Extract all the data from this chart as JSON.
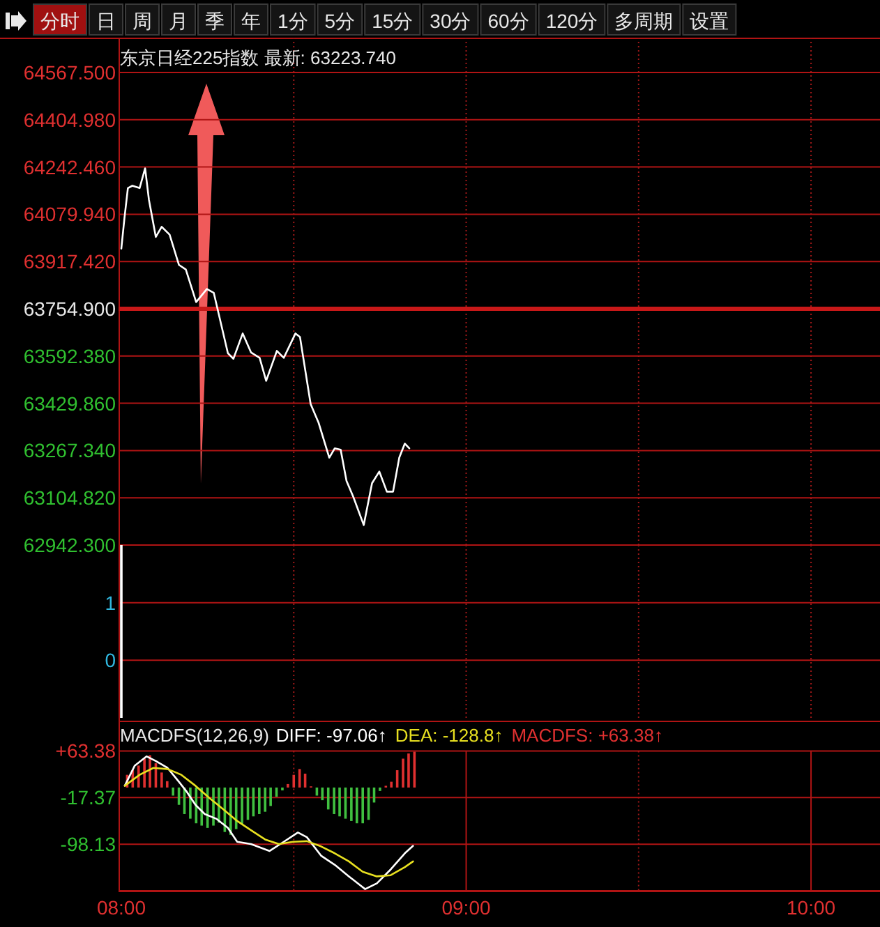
{
  "chart_data": [
    {
      "type": "line",
      "title": "东京日经225指数 最新: 63223.740",
      "annotations": [
        "分时",
        "日",
        "周",
        "月",
        "季",
        "年",
        "1分",
        "5分",
        "15分",
        "30分",
        "60分",
        "120分",
        "多周期",
        "设置"
      ],
      "x": [
        8.0,
        8.009,
        8.019,
        8.032,
        8.053,
        8.069,
        8.08,
        8.1,
        8.117,
        8.14,
        8.167,
        8.187,
        8.217,
        8.248,
        8.268,
        8.309,
        8.325,
        8.352,
        8.376,
        8.401,
        8.42,
        8.451,
        8.471,
        8.505,
        8.518,
        8.549,
        8.572,
        8.603,
        8.619,
        8.636,
        8.653,
        8.673,
        8.703,
        8.727,
        8.748,
        8.77,
        8.788,
        8.806,
        8.822,
        8.835
      ],
      "values": [
        63962,
        64066,
        64170,
        64178,
        64170,
        64238,
        64130,
        64002,
        64037,
        64010,
        63906,
        63890,
        63778,
        63823,
        63810,
        63602,
        63583,
        63670,
        63605,
        63586,
        63507,
        63610,
        63586,
        63670,
        63658,
        63427,
        63363,
        63243,
        63275,
        63270,
        63163,
        63107,
        63011,
        63155,
        63195,
        63126,
        63126,
        63243,
        63291,
        63275
      ],
      "color": "#ffffff",
      "xlim": [
        8,
        10.2
      ],
      "xticks": [
        {
          "value": 8,
          "label": null
        },
        {
          "value": 8.5,
          "label": null
        },
        {
          "value": 9,
          "label": null
        },
        {
          "value": 9.5,
          "label": null
        },
        {
          "value": 10,
          "label": null
        }
      ],
      "ylim": [
        62942.3,
        64567.5
      ],
      "yticks": [
        {
          "value": 64567.5,
          "label": "64567.500"
        },
        {
          "value": 64404.98,
          "label": "64404.980"
        },
        {
          "value": 64242.46,
          "label": "64242.460"
        },
        {
          "value": 64079.94,
          "label": "64079.940"
        },
        {
          "value": 63917.42,
          "label": "63917.420"
        },
        {
          "value": 63754.9,
          "label": "63754.900"
        },
        {
          "value": 63592.38,
          "label": "63592.380"
        },
        {
          "value": 63429.86,
          "label": "63429.860"
        },
        {
          "value": 63267.34,
          "label": "63267.340"
        },
        {
          "value": 63104.82,
          "label": "63104.820"
        },
        {
          "value": 62942.3,
          "label": "62942.300"
        }
      ],
      "ref_lines": [
        {
          "axis": "y",
          "value": 63754.9,
          "color": "#c81818"
        }
      ],
      "grid": true,
      "tick_labels": "y"
    },
    {
      "type": "bar",
      "x": [
        8.0
      ],
      "base": [
        -1
      ],
      "values": [
        3
      ],
      "color": "#ffffff",
      "xlim": [
        8,
        10.2
      ],
      "xticks": [
        {
          "value": 8,
          "label": null
        },
        {
          "value": 8.5,
          "label": null
        },
        {
          "value": 9,
          "label": null
        },
        {
          "value": 9.5,
          "label": null
        },
        {
          "value": 10,
          "label": null
        }
      ],
      "ylim": [
        -1,
        2
      ],
      "yticks": [
        0,
        1
      ],
      "grid": true,
      "tick_labels": "y"
    },
    {
      "type": "bar",
      "title": "MACDFS(12,26,9)",
      "legend": "top left",
      "xlim": [
        8,
        10.2
      ],
      "xticks": [
        {
          "value": 8,
          "label": "08:00"
        },
        {
          "value": 8.5,
          "label": null
        },
        {
          "value": 9,
          "label": "09:00"
        },
        {
          "value": 9.5,
          "label": null
        },
        {
          "value": 10,
          "label": "10:00"
        }
      ],
      "ylim": [
        -178.88,
        63.38
      ],
      "yticks": [
        {
          "value": 63.38,
          "label": "+63.38"
        },
        {
          "value": -17.37,
          "label": "-17.37"
        },
        {
          "value": -98.13,
          "label": "-98.13"
        },
        {
          "value": -178.88,
          "label": null
        }
      ],
      "grid": true,
      "series": [
        {
          "name": "MACDFS: +63.38↑",
          "color": "#e03030",
          "x": [
            8.017,
            8.033,
            8.05,
            8.067,
            8.083,
            8.1,
            8.117,
            8.133,
            8.15,
            8.167,
            8.183,
            8.2,
            8.217,
            8.233,
            8.25,
            8.267,
            8.283,
            8.3,
            8.317,
            8.333,
            8.35,
            8.367,
            8.383,
            8.4,
            8.417,
            8.433,
            8.45,
            8.467,
            8.483,
            8.5,
            8.517,
            8.533,
            8.55,
            8.567,
            8.583,
            8.6,
            8.617,
            8.633,
            8.65,
            8.667,
            8.683,
            8.7,
            8.717,
            8.733,
            8.75,
            8.767,
            8.783,
            8.8,
            8.817,
            8.833,
            8.85
          ],
          "values": [
            22,
            30,
            38,
            50,
            56,
            42,
            26,
            11,
            -14,
            -30,
            -46,
            -54,
            -62,
            -66,
            -70,
            -66,
            -61,
            -77,
            -82,
            -72,
            -64,
            -56,
            -50,
            -46,
            -42,
            -32,
            -16,
            -5,
            6,
            22,
            32,
            24,
            2,
            -14,
            -22,
            -38,
            -46,
            -50,
            -54,
            -58,
            -62,
            -62,
            -56,
            -26,
            -6,
            3,
            10,
            30,
            50,
            59,
            62
          ],
          "colors": [
            "#e03030",
            "#e03030",
            "#e03030",
            "#e03030",
            "#e03030",
            "#e03030",
            "#e03030",
            "#e03030",
            "#40c040",
            "#40c040",
            "#40c040",
            "#40c040",
            "#40c040",
            "#40c040",
            "#40c040",
            "#40c040",
            "#40c040",
            "#40c040",
            "#40c040",
            "#40c040",
            "#40c040",
            "#40c040",
            "#40c040",
            "#40c040",
            "#40c040",
            "#40c040",
            "#40c040",
            "#40c040",
            "#e03030",
            "#e03030",
            "#e03030",
            "#e03030",
            "#e03030",
            "#40c040",
            "#40c040",
            "#40c040",
            "#40c040",
            "#40c040",
            "#40c040",
            "#40c040",
            "#40c040",
            "#40c040",
            "#40c040",
            "#40c040",
            "#40c040",
            "#e03030",
            "#e03030",
            "#e03030",
            "#e03030",
            "#e03030",
            "#e03030"
          ]
        },
        {
          "name": "DIFF: -97.06↑",
          "type": "line",
          "color": "#ffffff",
          "x": [
            8.01,
            8.039,
            8.073,
            8.1,
            8.134,
            8.167,
            8.188,
            8.215,
            8.242,
            8.275,
            8.309,
            8.336,
            8.376,
            8.43,
            8.471,
            8.512,
            8.538,
            8.579,
            8.619,
            8.66,
            8.707,
            8.741,
            8.781,
            8.822,
            8.846
          ],
          "values": [
            3,
            38,
            54,
            46,
            34,
            10,
            -6,
            -30,
            -46,
            -54,
            -70,
            -94,
            -98,
            -110,
            -94,
            -78,
            -86,
            -118,
            -134,
            -154,
            -176,
            -166,
            -142,
            -114,
            -101
          ]
        },
        {
          "name": "DEA: -128.8↑",
          "type": "line",
          "color": "#e8e020",
          "x": [
            8.01,
            8.053,
            8.093,
            8.134,
            8.174,
            8.215,
            8.255,
            8.296,
            8.336,
            8.376,
            8.417,
            8.457,
            8.498,
            8.538,
            8.579,
            8.619,
            8.66,
            8.7,
            8.741,
            8.781,
            8.822,
            8.846
          ],
          "values": [
            3,
            22,
            34,
            32,
            22,
            3,
            -18,
            -38,
            -58,
            -74,
            -90,
            -98,
            -94,
            -93,
            -102,
            -114,
            -128,
            -146,
            -154,
            -152,
            -138,
            -128
          ]
        }
      ]
    }
  ]
}
